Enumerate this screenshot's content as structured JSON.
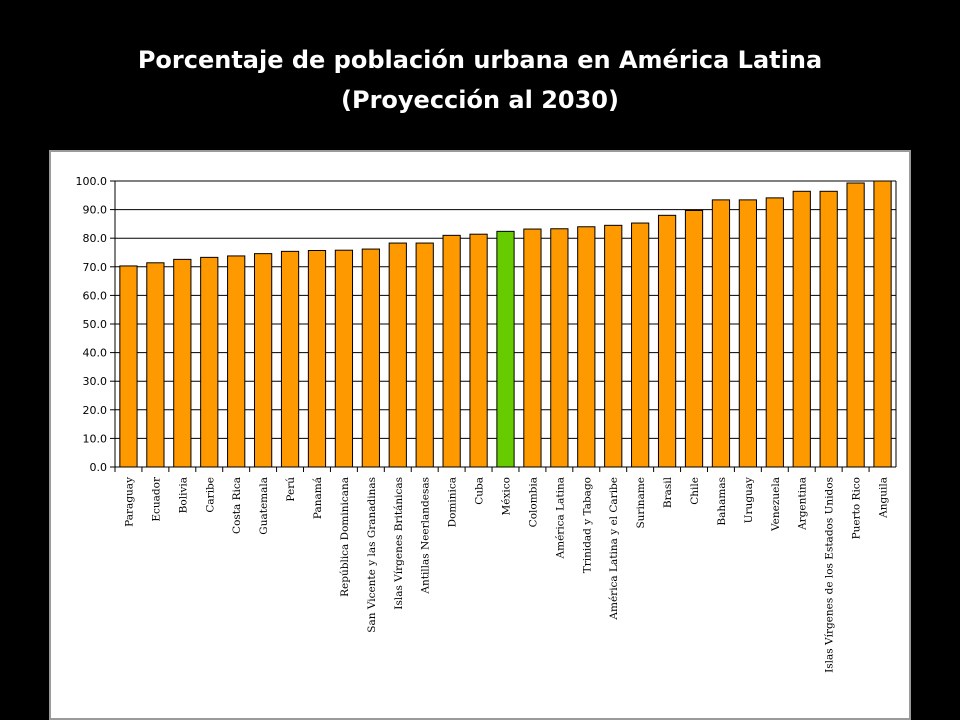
{
  "title": {
    "line1": "Porcentaje de población urbana en América Latina",
    "line2": "(Proyección al 2030)"
  },
  "colors": {
    "background": "#000000",
    "panel": "#ffffff",
    "bar": "#ff9900",
    "highlight_bar": "#66cc00",
    "bar_outline": "#000000",
    "gridline": "#000000"
  },
  "chart_data": {
    "type": "bar",
    "title": "Porcentaje de población urbana en América Latina (Proyección al 2030)",
    "xlabel": "",
    "ylabel": "",
    "ylim": [
      0,
      100
    ],
    "yticks": [
      "0.0",
      "10.0",
      "20.0",
      "30.0",
      "40.0",
      "50.0",
      "60.0",
      "70.0",
      "80.0",
      "90.0",
      "100.0"
    ],
    "grid": "horizontal",
    "legend": "none",
    "highlight": "México",
    "categories": [
      "Paraguay",
      "Ecuador",
      "Bolivia",
      "Caribe",
      "Costa Rica",
      "Guatemala",
      "Perú",
      "Panamá",
      "República Dominicana",
      "San Vicente y las Granadinas",
      "Islas Vírgenes Británicas",
      "Antillas Neerlandesas",
      "Dominica",
      "Cuba",
      "México",
      "Colombia",
      "América Latina",
      "Trinidad y Tabago",
      "América Latina y el Caribe",
      "Suriname",
      "Brasil",
      "Chile",
      "Bahamas",
      "Uruguay",
      "Venezuela",
      "Argentina",
      "Islas Vírgenes de los Estados Unidos",
      "Puerto Rico",
      "Anguila"
    ],
    "values": [
      70.3,
      71.4,
      72.6,
      73.3,
      73.8,
      74.6,
      75.4,
      75.7,
      75.8,
      76.2,
      78.3,
      78.3,
      81.0,
      81.4,
      82.4,
      83.2,
      83.3,
      84.0,
      84.5,
      85.3,
      88.0,
      89.7,
      93.4,
      93.4,
      94.1,
      96.4,
      96.4,
      99.3,
      100.0
    ]
  }
}
